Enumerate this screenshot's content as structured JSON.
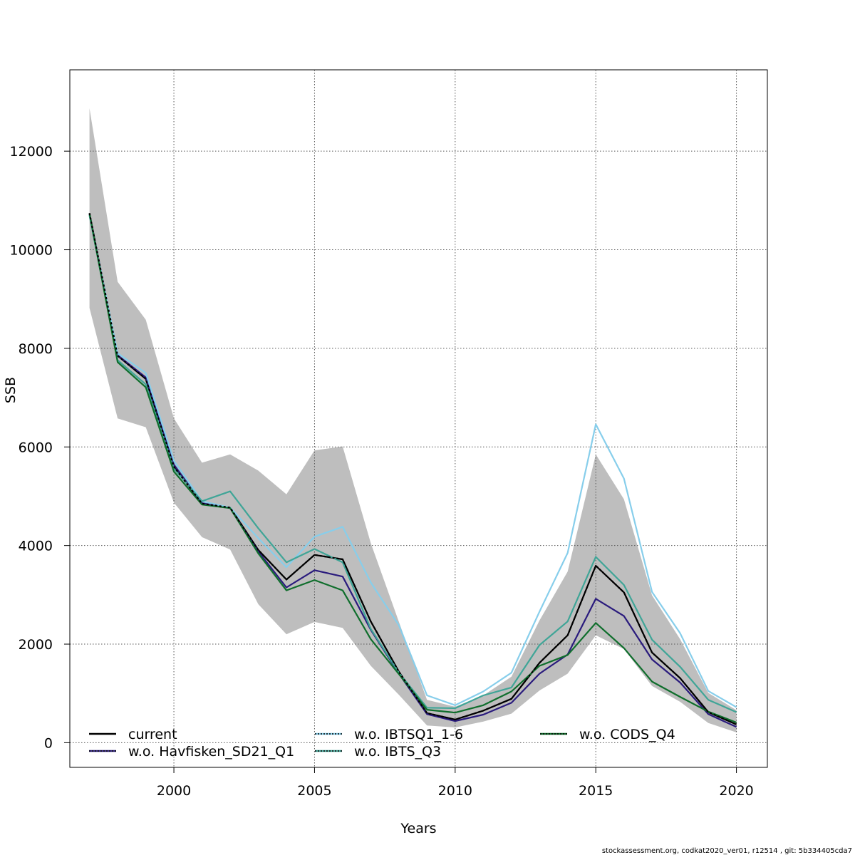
{
  "chart_data": {
    "type": "line",
    "title": "",
    "xlabel": "Years",
    "ylabel": "SSB",
    "xlim": [
      1996.3,
      2021.1
    ],
    "ylim": [
      -500,
      13650
    ],
    "grid": true,
    "legend_position": "bottom",
    "x_ticks": [
      2000,
      2005,
      2010,
      2015,
      2020
    ],
    "y_ticks": [
      0,
      2000,
      4000,
      6000,
      8000,
      10000,
      12000
    ],
    "x": [
      1997,
      1998,
      1999,
      2000,
      2001,
      2002,
      2003,
      2004,
      2005,
      2006,
      2007,
      2008,
      2009,
      2010,
      2011,
      2012,
      2013,
      2014,
      2015,
      2016,
      2017,
      2018,
      2019,
      2020
    ],
    "confidence_band": {
      "upper": [
        12870,
        9350,
        8580,
        6580,
        5680,
        5850,
        5520,
        5040,
        5930,
        6010,
        4050,
        2450,
        870,
        730,
        960,
        1340,
        2480,
        3470,
        5850,
        4940,
        2990,
        2100,
        1010,
        660
      ],
      "lower": [
        8820,
        6580,
        6400,
        4870,
        4170,
        3920,
        2810,
        2200,
        2450,
        2330,
        1560,
        970,
        350,
        310,
        430,
        590,
        1060,
        1400,
        2180,
        1900,
        1150,
        830,
        400,
        210
      ],
      "color": "#bebebe"
    },
    "series": [
      {
        "name": "current",
        "color": "#000000",
        "dash": "",
        "values": [
          10740,
          7850,
          7380,
          5600,
          4850,
          4770,
          3910,
          3310,
          3810,
          3720,
          2460,
          1440,
          600,
          470,
          650,
          890,
          1620,
          2180,
          3590,
          3050,
          1830,
          1310,
          620,
          370
        ]
      },
      {
        "name": "w.o. Havfisken_SD21_Q1",
        "color": "#2a1b7d",
        "dash": "",
        "values": [
          10730,
          7860,
          7410,
          5640,
          4860,
          4760,
          3880,
          3150,
          3500,
          3370,
          2290,
          1400,
          580,
          440,
          570,
          810,
          1400,
          1790,
          2920,
          2570,
          1690,
          1220,
          580,
          320
        ]
      },
      {
        "name": "w.o. IBTSQ1_1-6",
        "color": "#87ceeb",
        "dash": "",
        "values": [
          10700,
          7900,
          7500,
          5720,
          4900,
          4770,
          4150,
          3560,
          4180,
          4380,
          3250,
          2380,
          960,
          760,
          1040,
          1420,
          2660,
          3850,
          6460,
          5360,
          3060,
          2220,
          1050,
          720
        ]
      },
      {
        "name": "w.o. IBTS_Q3",
        "color": "#3fa597",
        "dash": "",
        "values": [
          10700,
          7760,
          7270,
          5560,
          4900,
          5100,
          4350,
          3660,
          3930,
          3660,
          2310,
          1420,
          710,
          700,
          960,
          1120,
          1980,
          2460,
          3770,
          3200,
          2090,
          1540,
          870,
          620
        ]
      },
      {
        "name": "w.o. CODS_Q4",
        "color": "#0f6e2c",
        "dash": "",
        "values": [
          10740,
          7720,
          7210,
          5500,
          4830,
          4760,
          3840,
          3090,
          3300,
          3090,
          2100,
          1390,
          670,
          610,
          760,
          1040,
          1560,
          1780,
          2430,
          1920,
          1240,
          930,
          630,
          410
        ]
      }
    ],
    "legend": [
      {
        "label": "current",
        "color": "#000000",
        "overlay": ""
      },
      {
        "label": "w.o. Havfisken_SD21_Q1",
        "color": "#2a1b7d",
        "overlay": "#000000"
      },
      {
        "label": "w.o. IBTSQ1_1-6",
        "color": "#87ceeb",
        "overlay": "#000000"
      },
      {
        "label": "w.o. IBTS_Q3",
        "color": "#3fa597",
        "overlay": "#000000"
      },
      {
        "label": "w.o. CODS_Q4",
        "color": "#0f6e2c",
        "overlay": "#000000"
      }
    ]
  },
  "footer_text": "stockassessment.org, codkat2020_ver01, r12514 , git: 5b334405cda7"
}
